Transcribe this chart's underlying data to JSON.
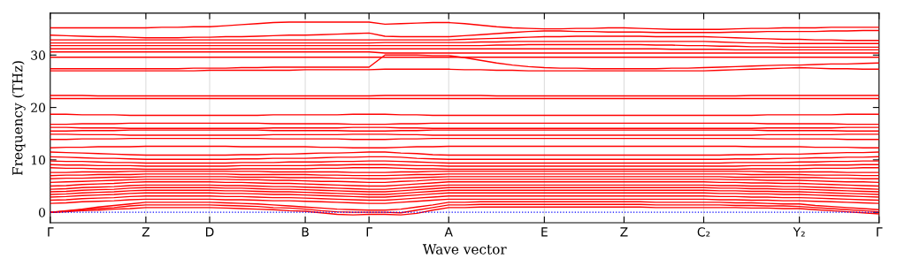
{
  "chart_data": {
    "type": "line",
    "xlabel": "Wave vector",
    "ylabel": "Frequency (THz)",
    "categories": [
      "Γ",
      null,
      null,
      null,
      null,
      null,
      "Z",
      null,
      null,
      null,
      "D",
      null,
      null,
      null,
      null,
      null,
      "B",
      null,
      null,
      null,
      "Γ",
      null,
      null,
      null,
      null,
      "A",
      null,
      null,
      null,
      null,
      null,
      "E",
      null,
      null,
      null,
      null,
      "Z",
      null,
      null,
      null,
      null,
      "C₂",
      null,
      null,
      null,
      null,
      null,
      "Y₂",
      null,
      null,
      null,
      null,
      "Γ"
    ],
    "ylim": [
      -2,
      38
    ],
    "yticks": [
      0,
      10,
      20,
      30
    ],
    "grid": "x",
    "marker": "none",
    "line_style": "solid",
    "ref_lines": [
      {
        "axis": "y",
        "value": 0,
        "color": "#0000ff",
        "line_style": "dotted"
      }
    ],
    "series": [
      {
        "color": "#ff0000",
        "values": [
          35.2,
          35.2,
          35.2,
          35.2,
          35.2,
          35.2,
          35.2,
          35.3,
          35.3,
          35.4,
          35.4,
          35.6,
          35.8,
          36.0,
          36.2,
          36.3,
          36.3,
          36.3,
          36.3,
          36.3,
          36.3,
          35.9,
          36.0,
          36.1,
          36.2,
          36.2,
          36.0,
          35.7,
          35.4,
          35.2,
          35.1,
          35.0,
          35.0,
          35.1,
          35.1,
          35.2,
          35.2,
          35.1,
          35.0,
          34.9,
          34.9,
          34.9,
          34.9,
          35.0,
          35.1,
          35.1,
          35.2,
          35.2,
          35.2,
          35.3,
          35.3,
          35.3,
          35.3
        ]
      },
      {
        "color": "#ff0000",
        "values": [
          33.8,
          33.7,
          33.6,
          33.5,
          33.5,
          33.4,
          33.3,
          33.3,
          33.3,
          33.4,
          33.4,
          33.5,
          33.5,
          33.6,
          33.7,
          33.8,
          33.8,
          33.9,
          34.0,
          34.1,
          34.2,
          33.6,
          33.5,
          33.5,
          33.5,
          33.5,
          33.7,
          33.9,
          34.1,
          34.3,
          34.5,
          34.6,
          34.6,
          34.5,
          34.5,
          34.4,
          34.4,
          34.4,
          34.3,
          34.3,
          34.3,
          34.3,
          34.3,
          34.4,
          34.4,
          34.5,
          34.5,
          34.5,
          34.5,
          34.6,
          34.6,
          34.7,
          34.7
        ]
      },
      {
        "color": "#ff0000",
        "values": [
          32.9,
          32.9,
          32.9,
          32.9,
          32.9,
          32.9,
          32.9,
          32.9,
          32.9,
          32.9,
          32.9,
          32.9,
          32.9,
          32.9,
          32.9,
          32.9,
          32.9,
          32.9,
          32.9,
          32.9,
          32.9,
          32.9,
          32.9,
          32.9,
          32.9,
          32.9,
          33.0,
          33.1,
          33.2,
          33.3,
          33.4,
          33.5,
          33.5,
          33.6,
          33.6,
          33.6,
          33.6,
          33.6,
          33.5,
          33.5,
          33.5,
          33.5,
          33.4,
          33.3,
          33.2,
          33.1,
          33.0,
          33.0,
          32.9,
          32.9,
          32.8,
          32.8,
          32.8
        ]
      },
      {
        "color": "#ff0000",
        "values": [
          32.3,
          32.3,
          32.3,
          32.3,
          32.3,
          32.3,
          32.3,
          32.3,
          32.3,
          32.3,
          32.3,
          32.3,
          32.3,
          32.3,
          32.3,
          32.3,
          32.3,
          32.3,
          32.3,
          32.3,
          32.3,
          32.4,
          32.4,
          32.4,
          32.4,
          32.4,
          32.4,
          32.5,
          32.5,
          32.6,
          32.6,
          32.6,
          32.6,
          32.6,
          32.6,
          32.6,
          32.6,
          32.6,
          32.6,
          32.6,
          32.6,
          32.6,
          32.5,
          32.4,
          32.3,
          32.3,
          32.2,
          32.2,
          32.2,
          32.2,
          32.2,
          32.2,
          32.2
        ]
      },
      {
        "color": "#ff0000",
        "values": [
          31.8,
          31.8,
          31.8,
          31.8,
          31.8,
          31.8,
          31.8,
          31.8,
          31.8,
          31.8,
          31.8,
          31.8,
          31.8,
          31.8,
          31.8,
          31.8,
          31.8,
          31.8,
          31.8,
          31.8,
          31.8,
          31.8,
          31.8,
          31.8,
          31.8,
          31.8,
          31.8,
          31.8,
          31.9,
          31.9,
          32.0,
          32.0,
          32.0,
          32.0,
          32.0,
          32.0,
          32.0,
          32.0,
          31.9,
          31.9,
          31.8,
          31.8,
          31.7,
          31.7,
          31.6,
          31.6,
          31.5,
          31.5,
          31.5,
          31.5,
          31.5,
          31.5,
          31.5
        ]
      },
      {
        "color": "#ff0000",
        "values": [
          31.2,
          31.2,
          31.2,
          31.2,
          31.2,
          31.2,
          31.2,
          31.2,
          31.2,
          31.2,
          31.2,
          31.2,
          31.2,
          31.2,
          31.2,
          31.2,
          31.2,
          31.2,
          31.2,
          31.2,
          31.2,
          31.2,
          31.2,
          31.2,
          31.2,
          31.2,
          31.2,
          31.2,
          31.2,
          31.2,
          31.2,
          31.2,
          31.2,
          31.2,
          31.2,
          31.2,
          31.2,
          31.2,
          31.2,
          31.1,
          31.1,
          31.1,
          31.1,
          31.0,
          31.0,
          31.0,
          31.0,
          31.0,
          31.0,
          31.0,
          31.0,
          31.0,
          31.0
        ]
      },
      {
        "color": "#ff0000",
        "values": [
          30.6,
          30.6,
          30.6,
          30.6,
          30.6,
          30.6,
          30.6,
          30.6,
          30.6,
          30.6,
          30.6,
          30.6,
          30.6,
          30.6,
          30.6,
          30.6,
          30.6,
          30.6,
          30.6,
          30.6,
          30.6,
          30.4,
          30.4,
          30.4,
          30.4,
          30.4,
          30.4,
          30.4,
          30.4,
          30.4,
          30.4,
          30.4,
          30.4,
          30.4,
          30.4,
          30.4,
          30.4,
          30.4,
          30.4,
          30.4,
          30.4,
          30.4,
          30.4,
          30.4,
          30.4,
          30.4,
          30.4,
          30.4,
          30.4,
          30.4,
          30.4,
          30.4,
          30.4
        ]
      },
      {
        "color": "#ff0000",
        "values": [
          29.6,
          29.6,
          29.6,
          29.6,
          29.6,
          29.6,
          29.6,
          29.6,
          29.6,
          29.6,
          29.6,
          29.6,
          29.6,
          29.6,
          29.6,
          29.6,
          29.6,
          29.6,
          29.6,
          29.6,
          29.6,
          29.6,
          29.6,
          29.6,
          29.6,
          29.6,
          29.6,
          29.6,
          29.6,
          29.6,
          29.6,
          29.6,
          29.6,
          29.6,
          29.6,
          29.6,
          29.6,
          29.6,
          29.6,
          29.6,
          29.6,
          29.6,
          29.6,
          29.6,
          29.6,
          29.6,
          29.6,
          29.6,
          29.6,
          29.6,
          29.6,
          29.6,
          29.6
        ]
      },
      {
        "color": "#ff0000",
        "values": [
          27.4,
          27.4,
          27.4,
          27.4,
          27.4,
          27.4,
          27.4,
          27.4,
          27.4,
          27.5,
          27.5,
          27.5,
          27.6,
          27.6,
          27.7,
          27.7,
          27.7,
          27.7,
          27.7,
          27.7,
          27.7,
          30.0,
          30.0,
          30.0,
          29.9,
          29.9,
          29.5,
          29.0,
          28.5,
          28.1,
          27.8,
          27.6,
          27.5,
          27.5,
          27.4,
          27.4,
          27.4,
          27.4,
          27.4,
          27.5,
          27.5,
          27.6,
          27.7,
          27.8,
          27.9,
          28.0,
          28.1,
          28.1,
          28.2,
          28.3,
          28.3,
          28.4,
          28.5
        ]
      },
      {
        "color": "#ff0000",
        "values": [
          27.0,
          27.0,
          27.0,
          27.0,
          27.0,
          27.0,
          27.0,
          27.0,
          27.0,
          27.0,
          27.1,
          27.1,
          27.1,
          27.1,
          27.1,
          27.1,
          27.2,
          27.2,
          27.2,
          27.2,
          27.2,
          27.3,
          27.3,
          27.3,
          27.3,
          27.3,
          27.2,
          27.2,
          27.1,
          27.1,
          27.0,
          27.0,
          27.0,
          27.0,
          27.0,
          27.0,
          27.0,
          27.0,
          27.0,
          27.0,
          27.0,
          27.0,
          27.1,
          27.2,
          27.3,
          27.4,
          27.5,
          27.6,
          27.5,
          27.4,
          27.4,
          27.3,
          27.3
        ]
      },
      {
        "color": "#ff0000",
        "values": [
          22.3,
          22.3,
          22.3,
          22.2,
          22.2,
          22.2,
          22.2,
          22.2,
          22.2,
          22.2,
          22.2,
          22.2,
          22.2,
          22.2,
          22.2,
          22.2,
          22.2,
          22.2,
          22.2,
          22.2,
          22.2,
          22.3,
          22.3,
          22.3,
          22.3,
          22.3,
          22.3,
          22.3,
          22.2,
          22.2,
          22.2,
          22.2,
          22.2,
          22.2,
          22.2,
          22.2,
          22.2,
          22.2,
          22.2,
          22.2,
          22.2,
          22.2,
          22.2,
          22.2,
          22.3,
          22.3,
          22.3,
          22.3,
          22.3,
          22.3,
          22.3,
          22.3,
          22.3
        ]
      },
      {
        "color": "#ff0000",
        "values": [
          21.7,
          21.7,
          21.7,
          21.7,
          21.7,
          21.7,
          21.7,
          21.7,
          21.7,
          21.7,
          21.7,
          21.7,
          21.7,
          21.7,
          21.7,
          21.7,
          21.7,
          21.7,
          21.7,
          21.7,
          21.7,
          21.7,
          21.7,
          21.7,
          21.7,
          21.7,
          21.7,
          21.7,
          21.7,
          21.7,
          21.7,
          21.7,
          21.7,
          21.7,
          21.7,
          21.7,
          21.7,
          21.7,
          21.7,
          21.7,
          21.7,
          21.7,
          21.7,
          21.7,
          21.7,
          21.7,
          21.7,
          21.7,
          21.7,
          21.7,
          21.7,
          21.7,
          21.7
        ]
      },
      {
        "color": "#ff0000",
        "values": [
          18.7,
          18.7,
          18.6,
          18.6,
          18.6,
          18.5,
          18.5,
          18.5,
          18.5,
          18.5,
          18.5,
          18.5,
          18.5,
          18.5,
          18.6,
          18.6,
          18.6,
          18.6,
          18.6,
          18.7,
          18.7,
          18.7,
          18.6,
          18.6,
          18.5,
          18.5,
          18.5,
          18.5,
          18.5,
          18.5,
          18.5,
          18.5,
          18.5,
          18.5,
          18.5,
          18.5,
          18.5,
          18.5,
          18.5,
          18.5,
          18.5,
          18.5,
          18.5,
          18.5,
          18.5,
          18.6,
          18.6,
          18.6,
          18.6,
          18.6,
          18.7,
          18.7,
          18.7
        ]
      },
      {
        "color": "#ff0000",
        "values": [
          16.8,
          16.8,
          16.9,
          16.9,
          16.9,
          17.0,
          17.0,
          17.0,
          17.0,
          17.0,
          17.0,
          17.0,
          17.0,
          17.0,
          16.9,
          16.9,
          16.9,
          16.9,
          16.9,
          16.8,
          16.8,
          16.8,
          16.9,
          16.9,
          17.0,
          17.0,
          17.0,
          17.0,
          17.0,
          17.0,
          17.0,
          17.0,
          17.0,
          17.0,
          17.0,
          17.0,
          17.0,
          17.0,
          17.0,
          17.0,
          17.0,
          17.0,
          17.0,
          17.0,
          17.0,
          16.9,
          16.9,
          16.9,
          16.9,
          16.9,
          16.8,
          16.8,
          16.8
        ]
      },
      {
        "color": "#ff0000",
        "values": [
          16.2,
          16.2,
          16.1,
          16.1,
          16.1,
          16.0,
          16.0,
          16.0,
          16.0,
          16.0,
          16.0,
          16.0,
          16.0,
          16.0,
          16.1,
          16.1,
          16.1,
          16.1,
          16.1,
          16.2,
          16.2,
          16.2,
          16.1,
          16.1,
          16.0,
          16.0,
          16.0,
          16.0,
          16.0,
          16.0,
          16.0,
          16.0,
          16.0,
          16.0,
          16.0,
          16.0,
          16.0,
          16.0,
          16.0,
          16.0,
          16.0,
          16.0,
          16.0,
          16.0,
          16.0,
          16.1,
          16.1,
          16.1,
          16.1,
          16.1,
          16.2,
          16.2,
          16.2
        ]
      },
      {
        "color": "#ff0000",
        "values": [
          15.5,
          15.5,
          15.6,
          15.6,
          15.6,
          15.7,
          15.7,
          15.7,
          15.7,
          15.7,
          15.7,
          15.7,
          15.7,
          15.7,
          15.6,
          15.6,
          15.6,
          15.6,
          15.6,
          15.5,
          15.5,
          15.5,
          15.6,
          15.6,
          15.7,
          15.7,
          15.7,
          15.7,
          15.7,
          15.7,
          15.7,
          15.7,
          15.7,
          15.7,
          15.7,
          15.7,
          15.7,
          15.7,
          15.7,
          15.7,
          15.7,
          15.7,
          15.7,
          15.7,
          15.7,
          15.6,
          15.6,
          15.6,
          15.6,
          15.6,
          15.5,
          15.5,
          15.5
        ]
      },
      {
        "color": "#ff0000",
        "values": [
          14.9,
          14.9,
          14.8,
          14.8,
          14.8,
          14.7,
          14.7,
          14.7,
          14.7,
          14.7,
          14.7,
          14.7,
          14.7,
          14.7,
          14.8,
          14.8,
          14.8,
          14.8,
          14.8,
          14.9,
          14.9,
          14.9,
          14.8,
          14.8,
          14.7,
          14.7,
          14.7,
          14.7,
          14.7,
          14.7,
          14.7,
          14.7,
          14.7,
          14.7,
          14.7,
          14.7,
          14.7,
          14.7,
          14.7,
          14.7,
          14.7,
          14.7,
          14.7,
          14.7,
          14.7,
          14.8,
          14.8,
          14.8,
          14.8,
          14.8,
          14.9,
          14.9,
          14.9
        ]
      },
      {
        "color": "#ff0000",
        "values": [
          13.9,
          13.9,
          14.0,
          14.0,
          14.0,
          14.1,
          14.1,
          14.1,
          14.1,
          14.1,
          14.1,
          14.1,
          14.1,
          14.1,
          14.0,
          14.0,
          14.0,
          14.0,
          14.0,
          13.9,
          13.9,
          13.9,
          14.0,
          14.0,
          14.1,
          14.1,
          14.1,
          14.1,
          14.1,
          14.1,
          14.1,
          14.1,
          14.1,
          14.1,
          14.1,
          14.1,
          14.1,
          14.1,
          14.1,
          14.1,
          14.1,
          14.1,
          14.1,
          14.1,
          14.1,
          14.0,
          14.0,
          14.0,
          14.0,
          14.0,
          13.9,
          13.9,
          13.9
        ]
      },
      {
        "color": "#ff0000",
        "values": [
          12.3,
          12.4,
          12.4,
          12.5,
          12.5,
          12.5,
          12.6,
          12.6,
          12.6,
          12.6,
          12.6,
          12.6,
          12.5,
          12.5,
          12.5,
          12.5,
          12.5,
          12.4,
          12.4,
          12.3,
          12.3,
          12.3,
          12.4,
          12.5,
          12.5,
          12.6,
          12.6,
          12.6,
          12.6,
          12.6,
          12.6,
          12.6,
          12.6,
          12.6,
          12.6,
          12.6,
          12.6,
          12.6,
          12.6,
          12.6,
          12.6,
          12.6,
          12.6,
          12.6,
          12.5,
          12.5,
          12.5,
          12.5,
          12.4,
          12.4,
          12.4,
          12.3,
          12.3
        ]
      },
      {
        "color": "#ff0000",
        "values": [
          11.5,
          11.4,
          11.3,
          11.2,
          11.1,
          11.0,
          10.9,
          10.9,
          10.9,
          10.9,
          10.9,
          10.9,
          11.0,
          11.0,
          11.1,
          11.1,
          11.2,
          11.3,
          11.3,
          11.4,
          11.5,
          11.5,
          11.3,
          11.2,
          11.0,
          10.9,
          10.9,
          10.9,
          10.9,
          10.9,
          10.9,
          10.9,
          10.9,
          10.9,
          10.9,
          10.9,
          10.9,
          10.9,
          10.9,
          10.9,
          10.9,
          10.9,
          10.9,
          11.0,
          11.0,
          11.1,
          11.1,
          11.1,
          11.2,
          11.3,
          11.4,
          11.4,
          11.5
        ]
      },
      {
        "color": "#ff0000",
        "values": [
          10.6,
          10.5,
          10.4,
          10.3,
          10.3,
          10.2,
          10.1,
          10.1,
          10.1,
          10.1,
          10.1,
          10.1,
          10.2,
          10.2,
          10.3,
          10.3,
          10.3,
          10.4,
          10.5,
          10.5,
          10.6,
          10.6,
          10.5,
          10.3,
          10.2,
          10.1,
          10.1,
          10.1,
          10.1,
          10.1,
          10.1,
          10.1,
          10.1,
          10.1,
          10.1,
          10.1,
          10.1,
          10.1,
          10.1,
          10.1,
          10.1,
          10.1,
          10.1,
          10.2,
          10.2,
          10.2,
          10.3,
          10.3,
          10.4,
          10.4,
          10.5,
          10.5,
          10.6
        ]
      },
      {
        "color": "#ff0000",
        "values": [
          9.8,
          9.7,
          9.7,
          9.6,
          9.5,
          9.5,
          9.4,
          9.4,
          9.4,
          9.4,
          9.4,
          9.4,
          9.5,
          9.5,
          9.5,
          9.6,
          9.6,
          9.6,
          9.7,
          9.7,
          9.8,
          9.8,
          9.7,
          9.6,
          9.5,
          9.4,
          9.4,
          9.4,
          9.4,
          9.4,
          9.4,
          9.4,
          9.4,
          9.4,
          9.4,
          9.4,
          9.4,
          9.4,
          9.4,
          9.4,
          9.4,
          9.4,
          9.4,
          9.5,
          9.5,
          9.5,
          9.5,
          9.6,
          9.6,
          9.7,
          9.7,
          9.8,
          9.8
        ]
      },
      {
        "color": "#ff0000",
        "values": [
          9.1,
          9.0,
          9.0,
          8.9,
          8.9,
          8.9,
          8.8,
          8.8,
          8.8,
          8.8,
          8.8,
          8.8,
          8.9,
          8.9,
          8.9,
          8.9,
          8.9,
          9.0,
          9.0,
          9.1,
          9.1,
          9.1,
          9.0,
          8.9,
          8.9,
          8.8,
          8.8,
          8.8,
          8.8,
          8.8,
          8.8,
          8.8,
          8.8,
          8.8,
          8.8,
          8.8,
          8.8,
          8.8,
          8.8,
          8.8,
          8.8,
          8.8,
          8.8,
          8.8,
          8.9,
          8.9,
          8.9,
          8.9,
          9.0,
          9.0,
          9.0,
          9.1,
          9.1
        ]
      },
      {
        "color": "#ff0000",
        "values": [
          8.5,
          8.4,
          8.4,
          8.3,
          8.3,
          8.3,
          8.2,
          8.2,
          8.2,
          8.2,
          8.2,
          8.2,
          8.3,
          8.3,
          8.3,
          8.3,
          8.3,
          8.4,
          8.4,
          8.5,
          8.5,
          8.5,
          8.4,
          8.3,
          8.3,
          8.2,
          8.2,
          8.2,
          8.2,
          8.2,
          8.2,
          8.2,
          8.2,
          8.2,
          8.2,
          8.2,
          8.2,
          8.2,
          8.2,
          8.2,
          8.2,
          8.2,
          8.2,
          8.2,
          8.3,
          8.3,
          8.3,
          8.3,
          8.4,
          8.4,
          8.4,
          8.5,
          8.5
        ]
      },
      {
        "color": "#ff0000",
        "values": [
          7.6,
          7.6,
          7.7,
          7.7,
          7.7,
          7.8,
          7.8,
          7.8,
          7.8,
          7.8,
          7.8,
          7.8,
          7.8,
          7.8,
          7.7,
          7.7,
          7.7,
          7.7,
          7.7,
          7.6,
          7.6,
          7.6,
          7.7,
          7.7,
          7.8,
          7.8,
          7.8,
          7.8,
          7.8,
          7.8,
          7.8,
          7.8,
          7.8,
          7.8,
          7.8,
          7.8,
          7.8,
          7.8,
          7.8,
          7.8,
          7.8,
          7.8,
          7.8,
          7.8,
          7.8,
          7.7,
          7.7,
          7.7,
          7.7,
          7.7,
          7.6,
          7.6,
          7.6
        ]
      },
      {
        "color": "#ff0000",
        "values": [
          7.0,
          7.1,
          7.1,
          7.2,
          7.2,
          7.2,
          7.3,
          7.3,
          7.3,
          7.3,
          7.3,
          7.3,
          7.2,
          7.2,
          7.2,
          7.2,
          7.2,
          7.1,
          7.1,
          7.0,
          7.0,
          7.0,
          7.1,
          7.2,
          7.2,
          7.3,
          7.3,
          7.3,
          7.3,
          7.3,
          7.3,
          7.3,
          7.3,
          7.3,
          7.3,
          7.3,
          7.3,
          7.3,
          7.3,
          7.3,
          7.3,
          7.3,
          7.3,
          7.3,
          7.2,
          7.2,
          7.2,
          7.2,
          7.1,
          7.1,
          7.1,
          7.0,
          7.0
        ]
      },
      {
        "color": "#ff0000",
        "values": [
          6.4,
          6.5,
          6.5,
          6.6,
          6.7,
          6.7,
          6.8,
          6.8,
          6.8,
          6.8,
          6.8,
          6.8,
          6.7,
          6.7,
          6.7,
          6.6,
          6.6,
          6.6,
          6.5,
          6.5,
          6.4,
          6.4,
          6.5,
          6.6,
          6.7,
          6.8,
          6.8,
          6.8,
          6.8,
          6.8,
          6.8,
          6.8,
          6.8,
          6.8,
          6.8,
          6.8,
          6.8,
          6.8,
          6.8,
          6.8,
          6.8,
          6.8,
          6.8,
          6.7,
          6.7,
          6.7,
          6.7,
          6.6,
          6.6,
          6.5,
          6.5,
          6.4,
          6.4
        ]
      },
      {
        "color": "#ff0000",
        "values": [
          5.7,
          5.8,
          5.9,
          6.0,
          6.1,
          6.2,
          6.3,
          6.3,
          6.3,
          6.3,
          6.3,
          6.3,
          6.2,
          6.2,
          6.1,
          6.1,
          6.0,
          5.9,
          5.9,
          5.8,
          5.7,
          5.7,
          5.9,
          6.0,
          6.2,
          6.3,
          6.3,
          6.3,
          6.3,
          6.3,
          6.3,
          6.3,
          6.3,
          6.3,
          6.3,
          6.3,
          6.3,
          6.3,
          6.3,
          6.3,
          6.3,
          6.3,
          6.3,
          6.2,
          6.2,
          6.1,
          6.1,
          6.1,
          6.0,
          5.9,
          5.8,
          5.8,
          5.7
        ]
      },
      {
        "color": "#ff0000",
        "values": [
          5.0,
          5.1,
          5.3,
          5.4,
          5.5,
          5.7,
          5.8,
          5.8,
          5.8,
          5.8,
          5.8,
          5.7,
          5.7,
          5.6,
          5.5,
          5.5,
          5.4,
          5.3,
          5.2,
          5.1,
          5.0,
          5.0,
          5.2,
          5.4,
          5.6,
          5.8,
          5.8,
          5.8,
          5.8,
          5.8,
          5.8,
          5.8,
          5.8,
          5.8,
          5.8,
          5.8,
          5.8,
          5.8,
          5.8,
          5.8,
          5.8,
          5.8,
          5.7,
          5.7,
          5.6,
          5.6,
          5.5,
          5.5,
          5.4,
          5.3,
          5.2,
          5.1,
          5.0
        ]
      },
      {
        "color": "#ff0000",
        "values": [
          4.4,
          4.5,
          4.7,
          4.8,
          4.9,
          5.1,
          5.2,
          5.2,
          5.2,
          5.2,
          5.2,
          5.1,
          5.1,
          5.0,
          4.9,
          4.9,
          4.8,
          4.7,
          4.6,
          4.5,
          4.4,
          4.4,
          4.6,
          4.8,
          5.0,
          5.2,
          5.2,
          5.2,
          5.2,
          5.2,
          5.2,
          5.2,
          5.2,
          5.2,
          5.2,
          5.2,
          5.2,
          5.2,
          5.2,
          5.2,
          5.2,
          5.2,
          5.1,
          5.1,
          5.0,
          5.0,
          4.9,
          4.9,
          4.8,
          4.7,
          4.6,
          4.5,
          4.4
        ]
      },
      {
        "color": "#ff0000",
        "values": [
          3.9,
          4.0,
          4.2,
          4.3,
          4.4,
          4.6,
          4.7,
          4.7,
          4.7,
          4.7,
          4.7,
          4.6,
          4.6,
          4.5,
          4.4,
          4.4,
          4.3,
          4.2,
          4.1,
          4.0,
          3.9,
          3.9,
          4.1,
          4.3,
          4.5,
          4.7,
          4.7,
          4.7,
          4.7,
          4.7,
          4.7,
          4.7,
          4.7,
          4.7,
          4.7,
          4.7,
          4.7,
          4.7,
          4.7,
          4.7,
          4.7,
          4.7,
          4.6,
          4.6,
          4.5,
          4.5,
          4.4,
          4.4,
          4.3,
          4.2,
          4.1,
          4.0,
          3.9
        ]
      },
      {
        "color": "#ff0000",
        "values": [
          3.4,
          3.5,
          3.7,
          3.8,
          3.9,
          4.1,
          4.2,
          4.2,
          4.2,
          4.2,
          4.2,
          4.1,
          4.1,
          4.0,
          3.9,
          3.9,
          3.8,
          3.7,
          3.6,
          3.5,
          3.4,
          3.4,
          3.6,
          3.8,
          4.0,
          4.2,
          4.2,
          4.2,
          4.2,
          4.2,
          4.2,
          4.2,
          4.2,
          4.2,
          4.2,
          4.2,
          4.2,
          4.2,
          4.2,
          4.2,
          4.2,
          4.2,
          4.1,
          4.1,
          4.0,
          4.0,
          3.9,
          3.9,
          3.8,
          3.7,
          3.6,
          3.5,
          3.4
        ]
      },
      {
        "color": "#ff0000",
        "values": [
          2.9,
          3.0,
          3.2,
          3.3,
          3.4,
          3.6,
          3.7,
          3.7,
          3.7,
          3.7,
          3.7,
          3.6,
          3.6,
          3.5,
          3.4,
          3.4,
          3.3,
          3.2,
          3.1,
          3.0,
          2.9,
          2.9,
          3.1,
          3.3,
          3.5,
          3.7,
          3.7,
          3.7,
          3.7,
          3.7,
          3.7,
          3.7,
          3.7,
          3.7,
          3.7,
          3.7,
          3.7,
          3.7,
          3.7,
          3.7,
          3.7,
          3.7,
          3.6,
          3.6,
          3.5,
          3.5,
          3.4,
          3.4,
          3.3,
          3.2,
          3.1,
          3.0,
          2.9
        ]
      },
      {
        "color": "#ff0000",
        "values": [
          2.3,
          2.4,
          2.6,
          2.7,
          2.8,
          3.0,
          3.1,
          3.1,
          3.1,
          3.1,
          3.1,
          3.0,
          3.0,
          2.9,
          2.8,
          2.8,
          2.7,
          2.6,
          2.5,
          2.4,
          2.3,
          2.3,
          2.5,
          2.7,
          2.9,
          3.1,
          3.1,
          3.1,
          3.1,
          3.1,
          3.1,
          3.1,
          3.1,
          3.1,
          3.1,
          3.1,
          3.1,
          3.1,
          3.1,
          3.1,
          3.1,
          3.1,
          3.0,
          3.0,
          2.9,
          2.9,
          2.8,
          2.8,
          2.7,
          2.6,
          2.5,
          2.4,
          2.3
        ]
      },
      {
        "color": "#ff0000",
        "values": [
          1.7,
          1.8,
          2.0,
          2.1,
          2.2,
          2.4,
          2.5,
          2.5,
          2.5,
          2.5,
          2.5,
          2.4,
          2.4,
          2.3,
          2.2,
          2.2,
          2.1,
          2.0,
          1.9,
          1.8,
          1.7,
          1.7,
          1.9,
          2.1,
          2.3,
          2.5,
          2.5,
          2.5,
          2.5,
          2.5,
          2.5,
          2.5,
          2.5,
          2.5,
          2.5,
          2.5,
          2.5,
          2.5,
          2.5,
          2.5,
          2.5,
          2.5,
          2.4,
          2.4,
          2.3,
          2.3,
          2.2,
          2.2,
          2.1,
          2.0,
          1.9,
          1.8,
          1.7
        ]
      },
      {
        "color": "#ff0000",
        "values": [
          0,
          0.3,
          0.6,
          1.0,
          1.3,
          1.6,
          1.9,
          1.9,
          1.9,
          1.9,
          1.9,
          1.8,
          1.7,
          1.6,
          1.4,
          1.2,
          1.0,
          0.8,
          0.6,
          0.5,
          0.4,
          0.4,
          0.6,
          1.0,
          1.4,
          1.9,
          1.9,
          2.0,
          2.0,
          2.0,
          2.0,
          2.0,
          2.0,
          2.0,
          2.0,
          2.0,
          2.0,
          2.0,
          1.9,
          1.9,
          1.9,
          1.9,
          1.9,
          1.8,
          1.8,
          1.7,
          1.6,
          1.6,
          1.3,
          1.1,
          0.9,
          0.7,
          0.5
        ]
      },
      {
        "color": "#ff0000",
        "values": [
          0,
          0.2,
          0.5,
          0.7,
          0.9,
          1.2,
          1.4,
          1.4,
          1.4,
          1.4,
          1.4,
          1.3,
          1.2,
          1.1,
          0.9,
          0.8,
          0.6,
          0.3,
          0.1,
          0.0,
          0.0,
          0.0,
          -0.1,
          0.4,
          0.9,
          1.4,
          1.4,
          1.5,
          1.5,
          1.5,
          1.5,
          1.5,
          1.5,
          1.5,
          1.5,
          1.5,
          1.5,
          1.5,
          1.4,
          1.4,
          1.4,
          1.4,
          1.4,
          1.3,
          1.3,
          1.2,
          1.2,
          1.1,
          0.9,
          0.7,
          0.5,
          0.3,
          0.1
        ]
      },
      {
        "color": "#ff0000",
        "values": [
          0,
          0.1,
          0.3,
          0.4,
          0.6,
          0.7,
          0.9,
          0.9,
          0.9,
          0.9,
          0.9,
          0.8,
          0.7,
          0.6,
          0.5,
          0.3,
          0.2,
          -0.1,
          -0.4,
          -0.5,
          -0.4,
          -0.4,
          -0.5,
          -0.2,
          0.4,
          0.9,
          0.9,
          1.0,
          1.0,
          1.0,
          1.0,
          1.0,
          1.0,
          1.0,
          1.0,
          1.0,
          1.0,
          1.0,
          0.9,
          0.9,
          0.9,
          0.9,
          0.9,
          0.9,
          0.8,
          0.8,
          0.7,
          0.7,
          0.5,
          0.3,
          0.1,
          -0.1,
          -0.3
        ]
      }
    ]
  }
}
